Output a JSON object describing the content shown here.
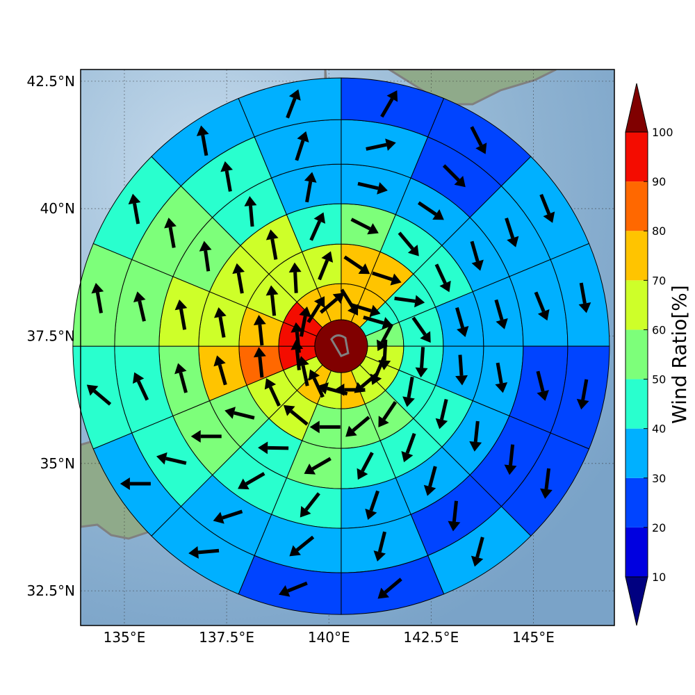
{
  "map": {
    "lon_ticks": [
      {
        "lon": 135.0,
        "label": "135°E"
      },
      {
        "lon": 137.5,
        "label": "137.5°E"
      },
      {
        "lon": 140.0,
        "label": "140°E"
      },
      {
        "lon": 142.5,
        "label": "142.5°E"
      },
      {
        "lon": 145.0,
        "label": "145°E"
      }
    ],
    "lat_ticks": [
      {
        "lat": 32.5,
        "label": "32.5°N"
      },
      {
        "lat": 35.0,
        "label": "35°N"
      },
      {
        "lat": 37.5,
        "label": "37.5°N"
      },
      {
        "lat": 40.0,
        "label": "40°N"
      },
      {
        "lat": 42.5,
        "label": "42.5°N"
      }
    ],
    "extent": {
      "lon_min": 133.93,
      "lon_max": 146.98,
      "lat_min": 31.82,
      "lat_max": 42.73
    },
    "ocean_color": "#8ab0d0",
    "land_color": "#8faa8a",
    "coastline_color": "#808080"
  },
  "polar_grid": {
    "center": {
      "lon": 140.3,
      "lat": 37.3
    },
    "center_value": 100,
    "sectors": 16,
    "rings": [
      {
        "ring": 1,
        "values": [
          75,
          72,
          48,
          57,
          63,
          63,
          63,
          75,
          63,
          73,
          63,
          92,
          92,
          92,
          75,
          75
        ],
        "arrows": [
          148,
          107,
          106,
          208,
          183,
          203,
          230,
          270,
          285,
          335,
          348,
          354,
          354,
          11,
          32,
          50
        ]
      },
      {
        "ring": 2,
        "values": [
          70,
          73,
          46,
          48,
          46,
          48,
          50,
          55,
          58,
          60,
          63,
          86,
          75,
          62,
          62,
          65
        ],
        "arrows": [
          124,
          108,
          98,
          145,
          184,
          190,
          214,
          230,
          270,
          309,
          335,
          354,
          354,
          354,
          357,
          22
        ]
      },
      {
        "ring": 3,
        "values": [
          55,
          47,
          46,
          36,
          34,
          46,
          46,
          42,
          56,
          45,
          56,
          73,
          64,
          63,
          62,
          45
        ],
        "arrows": [
          117,
          140,
          155,
          164,
          176,
          193,
          200,
          208,
          240,
          271,
          284,
          344,
          350,
          350,
          350,
          24
        ]
      },
      {
        "ring": 4,
        "values": [
          32,
          36,
          35,
          34,
          35,
          34,
          36,
          35,
          46,
          45,
          55,
          55,
          62,
          52,
          46,
          38
        ],
        "arrows": [
          103,
          124,
          164,
          164,
          170,
          186,
          195,
          199,
          218,
          240,
          270,
          345,
          350,
          352,
          355,
          10
        ]
      },
      {
        "ring": 5,
        "values": [
          30,
          28,
          34,
          34,
          23,
          25,
          23,
          35,
          37,
          35,
          45,
          42,
          56,
          53,
          48,
          37
        ],
        "arrows": [
          78,
          135,
          162,
          158,
          166,
          186,
          186,
          194,
          231,
          252,
          283,
          335,
          347,
          350,
          350,
          18
        ]
      },
      {
        "ring": 6,
        "values": [
          27,
          24,
          35,
          37,
          23,
          22,
          30,
          25,
          25,
          34,
          39,
          43,
          56,
          45,
          35,
          35
        ],
        "arrows": [
          30,
          153,
          158,
          170,
          190,
          187,
          195,
          230,
          248,
          265,
          270,
          310,
          350,
          350,
          350,
          21
        ]
      }
    ]
  },
  "colorbar": {
    "title": "Wind Ratio[%]",
    "ticks": [
      "10",
      "20",
      "30",
      "40",
      "50",
      "60",
      "70",
      "80",
      "90",
      "100"
    ],
    "bins": [
      {
        "min": 0,
        "max": 10,
        "color": "#000080"
      },
      {
        "min": 10,
        "max": 20,
        "color": "#0000e0"
      },
      {
        "min": 20,
        "max": 30,
        "color": "#0044ff"
      },
      {
        "min": 30,
        "max": 40,
        "color": "#00b0ff"
      },
      {
        "min": 40,
        "max": 50,
        "color": "#29ffce"
      },
      {
        "min": 50,
        "max": 60,
        "color": "#7dff7a"
      },
      {
        "min": 60,
        "max": 70,
        "color": "#ceff29"
      },
      {
        "min": 70,
        "max": 80,
        "color": "#ffc400"
      },
      {
        "min": 80,
        "max": 90,
        "color": "#ff6800"
      },
      {
        "min": 90,
        "max": 100,
        "color": "#f40c00"
      },
      {
        "min": 100,
        "max": 110,
        "color": "#800000"
      }
    ]
  }
}
